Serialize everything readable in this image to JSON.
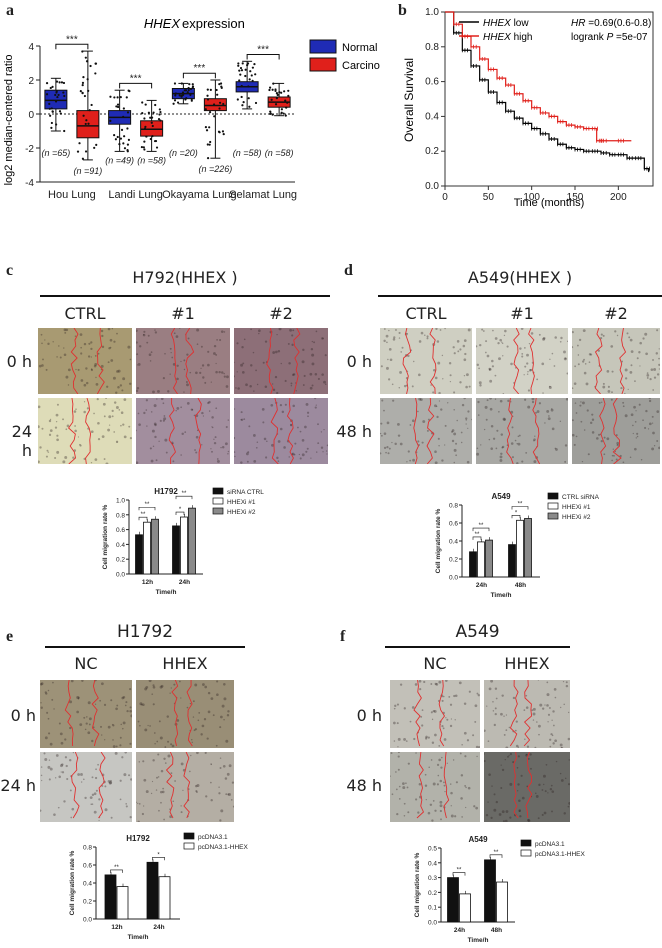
{
  "panels": {
    "a": {
      "label": "a",
      "title_gene": "HHEX",
      "title_rest": " expression",
      "ylabel": "log2 median-centered ratio",
      "ylim": [
        -4,
        4
      ],
      "yticks": [
        "4",
        "2",
        "0",
        "-2",
        "-4"
      ],
      "legend": [
        {
          "name": "Normal",
          "color": "#1f2bb5"
        },
        {
          "name": "Carcinoma",
          "color": "#e0201b"
        }
      ],
      "sig": "***",
      "chart_data": {
        "type": "boxplot",
        "categories": [
          "Hou Lung",
          "Landi Lung",
          "Okayama Lung",
          "Selamat Lung"
        ],
        "series": [
          {
            "name": "Normal",
            "boxes": [
              {
                "min": -1.0,
                "q1": 0.3,
                "median": 0.8,
                "q3": 1.4,
                "max": 2.1,
                "n": "(n =65)"
              },
              {
                "min": -2.2,
                "q1": -0.6,
                "median": -0.2,
                "q3": 0.2,
                "max": 1.4,
                "n": "(n =49)"
              },
              {
                "min": 0.6,
                "q1": 0.9,
                "median": 1.2,
                "q3": 1.5,
                "max": 1.8,
                "n": "(n =20)"
              },
              {
                "min": 0.3,
                "q1": 1.3,
                "median": 1.6,
                "q3": 1.9,
                "max": 3.1,
                "n": "(n =58)"
              }
            ]
          },
          {
            "name": "Carcinoma",
            "boxes": [
              {
                "min": -2.7,
                "q1": -1.4,
                "median": -0.7,
                "q3": 0.2,
                "max": 3.7,
                "n": "(n =91)"
              },
              {
                "min": -2.2,
                "q1": -1.3,
                "median": -0.9,
                "q3": -0.4,
                "max": 0.8,
                "n": "(n =58)"
              },
              {
                "min": -2.6,
                "q1": 0.2,
                "median": 0.5,
                "q3": 0.9,
                "max": 2.0,
                "n": "(n =226)"
              },
              {
                "min": -0.1,
                "q1": 0.4,
                "median": 0.7,
                "q3": 1.0,
                "max": 1.8,
                "n": "(n =58)"
              }
            ]
          }
        ]
      }
    },
    "b": {
      "label": "b",
      "ylabel": "Overall Survival",
      "xlabel": "Time (months)",
      "legend": [
        {
          "gene": "HHEX",
          "suffix": " low",
          "color": "#000000"
        },
        {
          "gene": "HHEX",
          "suffix": " high",
          "color": "#e0201b"
        }
      ],
      "hr_label": "HR",
      "hr_value": " =0.69(0.6-0.8)",
      "logrank_label": "logrank ",
      "p_label": "P",
      "p_value": " =5e-07",
      "xticks": [
        "0",
        "50",
        "100",
        "150",
        "200"
      ],
      "yticks": [
        "1.0",
        "0.8",
        "0.6",
        "0.4",
        "0.2",
        "0.0"
      ],
      "chart_data": {
        "type": "line",
        "xlim": [
          0,
          240
        ],
        "ylim": [
          0,
          1
        ],
        "series": [
          {
            "name": "HHEX low",
            "x": [
              0,
              10,
              20,
              30,
              40,
              50,
              60,
              70,
              80,
              90,
              100,
              110,
              120,
              130,
              140,
              150,
              160,
              170,
              180,
              190,
              200,
              210,
              220,
              230,
              235
            ],
            "y": [
              1.0,
              0.88,
              0.78,
              0.69,
              0.61,
              0.54,
              0.48,
              0.43,
              0.39,
              0.36,
              0.33,
              0.3,
              0.27,
              0.24,
              0.22,
              0.21,
              0.2,
              0.2,
              0.19,
              0.18,
              0.18,
              0.16,
              0.16,
              0.1,
              0.08
            ]
          },
          {
            "name": "HHEX high",
            "x": [
              0,
              10,
              20,
              30,
              40,
              50,
              60,
              70,
              80,
              90,
              100,
              110,
              120,
              130,
              140,
              150,
              160,
              170,
              175,
              180,
              200,
              215
            ],
            "y": [
              1.0,
              0.93,
              0.86,
              0.8,
              0.73,
              0.67,
              0.62,
              0.58,
              0.53,
              0.49,
              0.45,
              0.42,
              0.4,
              0.37,
              0.35,
              0.34,
              0.33,
              0.33,
              0.26,
              0.26,
              0.26,
              0.26
            ]
          }
        ]
      }
    },
    "c": {
      "label": "c",
      "heading": "H792(HHEX )",
      "cols": [
        "CTRL",
        "#1",
        "#2"
      ],
      "rows": [
        "0 h",
        "24 h"
      ],
      "chart_data": {
        "type": "bar",
        "title": "H1792",
        "ylabel": "Cell migration rate %",
        "xlabel": "Time/h",
        "ylim": [
          0,
          1.0
        ],
        "yticks": [
          "1.0",
          "0.8",
          "0.6",
          "0.4",
          "0.2",
          "0.0"
        ],
        "categories": [
          "12h",
          "24h"
        ],
        "series": [
          {
            "name": "siRNA CTRL",
            "values": [
              0.53,
              0.65
            ],
            "color": "#111111"
          },
          {
            "name": "HHEXi #1",
            "values": [
              0.7,
              0.77
            ],
            "color": "#ffffff"
          },
          {
            "name": "HHEXi #2",
            "values": [
              0.74,
              0.89
            ],
            "color": "#8a8a8a"
          }
        ],
        "sig": [
          "**",
          "**",
          "*",
          "**"
        ]
      }
    },
    "d": {
      "label": "d",
      "heading": "A549(HHEX )",
      "cols": [
        "CTRL",
        "#1",
        "#2"
      ],
      "rows": [
        "0 h",
        "48 h"
      ],
      "chart_data": {
        "type": "bar",
        "title": "A549",
        "ylabel": "Cell migration rate %",
        "xlabel": "Time/h",
        "ylim": [
          0,
          0.8
        ],
        "yticks": [
          "0.8",
          "0.6",
          "0.4",
          "0.2",
          "0.0"
        ],
        "categories": [
          "24h",
          "48h"
        ],
        "series": [
          {
            "name": "CTRL siRNA",
            "values": [
              0.28,
              0.36
            ],
            "color": "#111111"
          },
          {
            "name": "HHEXi #1",
            "values": [
              0.39,
              0.63
            ],
            "color": "#ffffff"
          },
          {
            "name": "HHEXi #2",
            "values": [
              0.41,
              0.65
            ],
            "color": "#8a8a8a"
          }
        ],
        "sig": [
          "**",
          "**",
          "*",
          "**"
        ]
      }
    },
    "e": {
      "label": "e",
      "heading": "H1792",
      "cols": [
        "NC",
        "HHEX"
      ],
      "rows": [
        "0 h",
        "24 h"
      ],
      "chart_data": {
        "type": "bar",
        "title": "H1792",
        "ylabel": "Cell migration rate %",
        "xlabel": "Time/h",
        "ylim": [
          0,
          0.8
        ],
        "yticks": [
          "0.8",
          "0.6",
          "0.4",
          "0.2",
          "0.0"
        ],
        "categories": [
          "12h",
          "24h"
        ],
        "series": [
          {
            "name": "pcDNA3.1",
            "values": [
              0.49,
              0.63
            ],
            "color": "#111111"
          },
          {
            "name": "pcDNA3.1-HHEX",
            "values": [
              0.36,
              0.47
            ],
            "color": "#ffffff"
          }
        ],
        "sig": [
          "**",
          "*"
        ]
      }
    },
    "f": {
      "label": "f",
      "heading": "A549",
      "cols": [
        "NC",
        "HHEX"
      ],
      "rows": [
        "0 h",
        "48 h"
      ],
      "chart_data": {
        "type": "bar",
        "title": "A549",
        "ylabel": "Cell migration rate %",
        "xlabel": "Time/h",
        "ylim": [
          0,
          0.5
        ],
        "yticks": [
          "0.5",
          "0.4",
          "0.3",
          "0.2",
          "0.1",
          "0.0"
        ],
        "categories": [
          "24h",
          "48h"
        ],
        "series": [
          {
            "name": "pcDNA3.1",
            "values": [
              0.3,
              0.42
            ],
            "color": "#111111"
          },
          {
            "name": "pcDNA3.1-HHEX",
            "values": [
              0.19,
              0.27
            ],
            "color": "#ffffff"
          }
        ],
        "sig": [
          "**",
          "**"
        ]
      }
    }
  }
}
